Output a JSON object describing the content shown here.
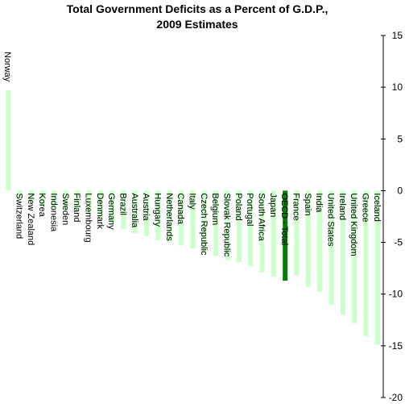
{
  "chart_data": {
    "type": "bar",
    "title": "Total Government Deficits as a Percent of G.D.P.,",
    "subtitle": "2009 Estimates",
    "xlabel": "",
    "ylabel": "",
    "ylim": [
      -20,
      15
    ],
    "yticks": [
      15,
      10,
      5,
      0,
      -5,
      -10,
      -15,
      -20
    ],
    "y_axis_position": "right",
    "grid": false,
    "legend": "none",
    "colors": {
      "bar": "#ccffcc",
      "highlight": "#008000"
    },
    "highlight_category": "OECD - Total",
    "categories": [
      "Norway",
      "Switzerland",
      "New Zealand",
      "Korea",
      "Indonesia",
      "Sweden",
      "Finland",
      "Luxembourg",
      "Denmark",
      "Germany",
      "Brazil",
      "Australia",
      "Austria",
      "Hungary",
      "Netherlands",
      "Canada",
      "Italy",
      "Czech Republic",
      "Belgium",
      "Slovak Republic",
      "Poland",
      "Portugal",
      "South Africa",
      "Japan",
      "OECD - Total",
      "France",
      "Spain",
      "India",
      "United States",
      "Ireland",
      "United Kingdom",
      "Greece",
      "Iceland"
    ],
    "values": [
      9.7,
      -0.8,
      -1.2,
      -1.5,
      -1.7,
      -1.8,
      -2.0,
      -2.3,
      -2.7,
      -3.2,
      -3.7,
      -4.1,
      -4.4,
      -4.8,
      -5.0,
      -5.3,
      -5.6,
      -6.0,
      -6.3,
      -6.7,
      -6.9,
      -7.3,
      -7.9,
      -8.3,
      -8.7,
      -8.2,
      -9.3,
      -9.8,
      -11.0,
      -12.0,
      -12.8,
      -14.1,
      -14.9
    ]
  }
}
